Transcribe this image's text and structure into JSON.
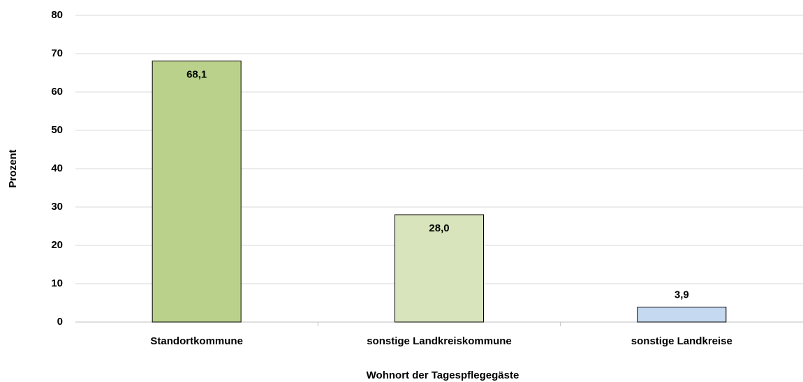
{
  "chart_data": {
    "type": "bar",
    "categories": [
      "Standortkommune",
      "sonstige Landkreiskommune",
      "sonstige Landkreise"
    ],
    "values": [
      68.1,
      28.0,
      3.9
    ],
    "value_labels": [
      "68,1",
      "28,0",
      "3,9"
    ],
    "colors": [
      "#b9d18b",
      "#d8e4bc",
      "#c5d9f1"
    ],
    "xlabel": "Wohnort der Tagespflegegäste",
    "ylabel": "Prozent",
    "ylim": [
      0,
      80
    ],
    "yticks": [
      0,
      10,
      20,
      30,
      40,
      50,
      60,
      70,
      80
    ],
    "grid": true
  }
}
